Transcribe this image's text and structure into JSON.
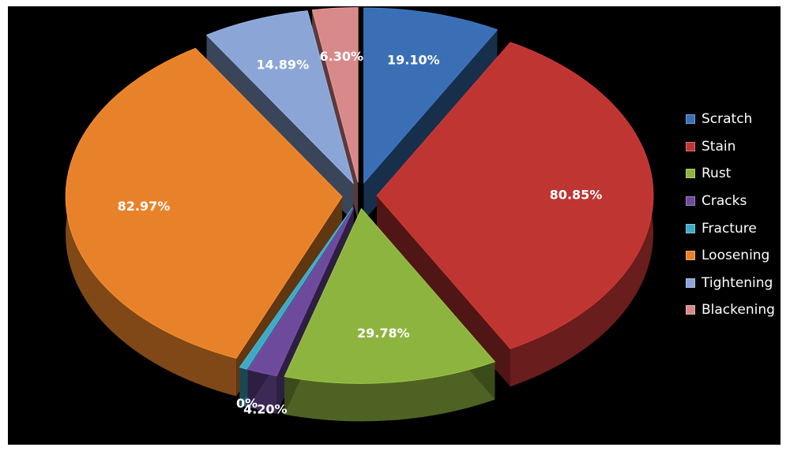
{
  "chart_data": {
    "type": "pie",
    "title": "",
    "categories": [
      "Scratch",
      "Stain",
      "Rust",
      "Cracks",
      "Fracture",
      "Loosening",
      "Tightening",
      "Blackening"
    ],
    "values": [
      19.1,
      80.85,
      29.78,
      4.2,
      0,
      82.97,
      14.89,
      6.3
    ],
    "labels": [
      "19.10%",
      "80.85%",
      "29.78%",
      "4.20%",
      "0%",
      "82.97%",
      "14.89%",
      "6.30%"
    ],
    "colors": [
      "#3a6fb6",
      "#be3532",
      "#8db43f",
      "#6e4a9c",
      "#3fa9c4",
      "#e8822a",
      "#8aa5d6",
      "#d88a8a"
    ],
    "legend_position": "right",
    "style": "exploded 3D pie"
  }
}
